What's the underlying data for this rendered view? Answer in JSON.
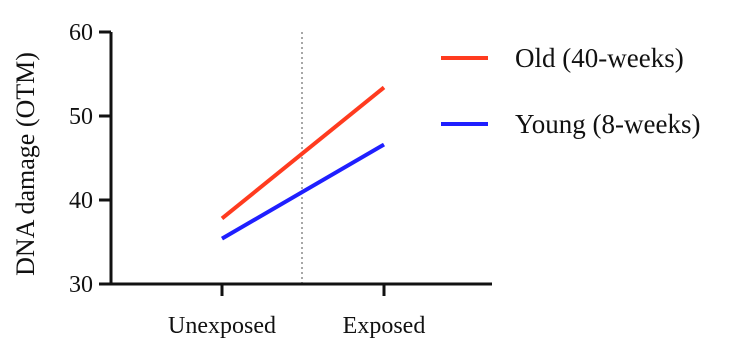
{
  "chart_data": {
    "type": "line",
    "title": "",
    "xlabel": "",
    "ylabel": "DNA damage (OTM)",
    "categories": [
      "Unexposed",
      "Exposed"
    ],
    "ylim": [
      30,
      60
    ],
    "yticks": [
      30,
      40,
      50,
      60
    ],
    "grid": false,
    "divider_line": "vertical dotted line between categories",
    "legend_placement": "right",
    "series": [
      {
        "name": "Old (40-weeks)",
        "values": [
          37.8,
          53.4
        ],
        "color": "#ff3b1f"
      },
      {
        "name": "Young (8-weeks)",
        "values": [
          35.4,
          46.6
        ],
        "color": "#1f1fff"
      }
    ]
  }
}
